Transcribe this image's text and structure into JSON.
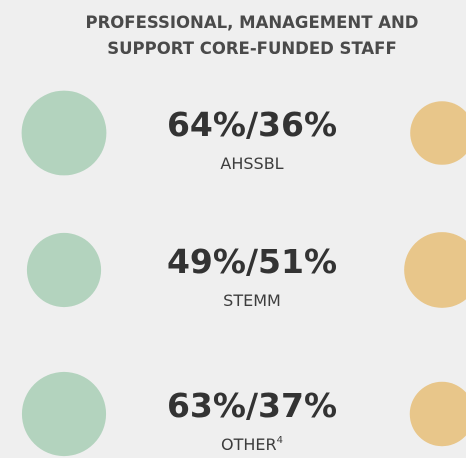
{
  "chart_data": {
    "type": "proportional-circles",
    "title": [
      "PROFESSIONAL, MANAGEMENT AND",
      "SUPPORT CORE-FUNDED STAFF"
    ],
    "categories": [
      "AHSSBL",
      "STEMM",
      "OTHER"
    ],
    "footnote_marks": [
      null,
      null,
      "4"
    ],
    "separator": "/",
    "series": [
      {
        "color": "#b3d3be",
        "values": [
          64,
          49,
          63
        ],
        "value_labels": [
          "64%",
          "49%",
          "63%"
        ]
      },
      {
        "color": "#e8c68a",
        "values": [
          36,
          51,
          37
        ],
        "value_labels": [
          "36%",
          "51%",
          "37%"
        ]
      }
    ]
  }
}
